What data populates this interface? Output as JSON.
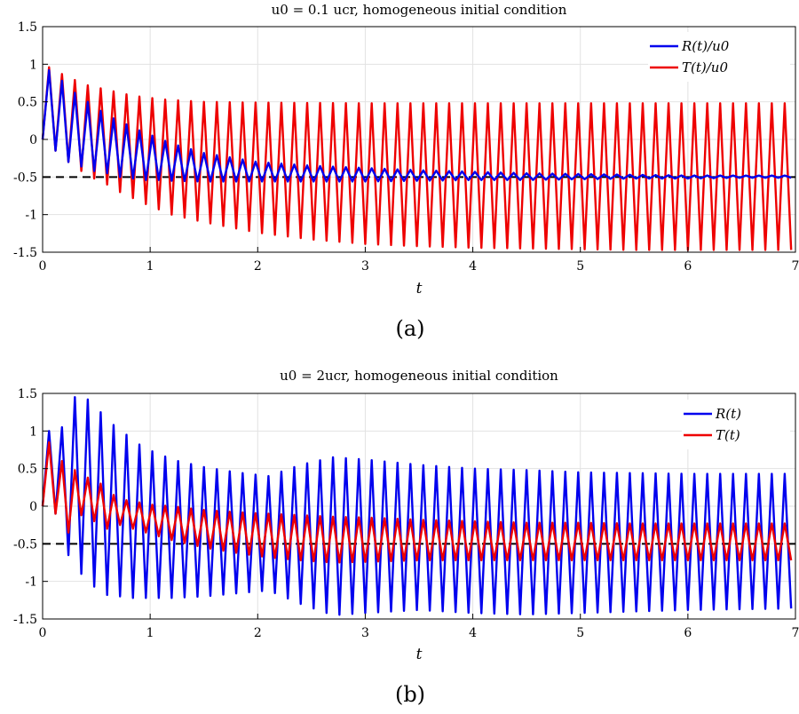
{
  "chart_data": [
    {
      "type": "line",
      "title": "u0 = 0.1 ucr, homogeneous initial condition",
      "xlabel": "t",
      "ylabel": "",
      "xlim": [
        0,
        7
      ],
      "ylim": [
        -1.5,
        1.5
      ],
      "xticks": [
        "0",
        "1",
        "2",
        "3",
        "4",
        "5",
        "6",
        "7"
      ],
      "yticks": [
        "1.5",
        "1",
        "0.5",
        "0",
        "-0.5",
        "-1",
        "-1.5"
      ],
      "grid": true,
      "legend_position": "top-right",
      "caption": "(a)",
      "reference_line": {
        "y": -0.5,
        "style": "dashed",
        "color": "#000000"
      },
      "oscillation_period": 0.12,
      "series": [
        {
          "name": "R(t)/u0",
          "color": "#0000ee",
          "peak_t": [
            0.06,
            0.18,
            0.3,
            0.42,
            0.54,
            0.66,
            0.78,
            0.9,
            1.02,
            1.14,
            1.26,
            1.5,
            2.0,
            2.5,
            3.0,
            3.5,
            4.0,
            4.5,
            5.0,
            5.5,
            6.0,
            6.5,
            7.0
          ],
          "peak_values": [
            0.92,
            0.78,
            0.62,
            0.5,
            0.38,
            0.28,
            0.2,
            0.12,
            0.05,
            -0.02,
            -0.08,
            -0.18,
            -0.3,
            -0.35,
            -0.38,
            -0.41,
            -0.43,
            -0.45,
            -0.46,
            -0.47,
            -0.48,
            -0.48,
            -0.48
          ],
          "trough_t": [
            0.12,
            0.24,
            0.36,
            0.48,
            0.6,
            0.72,
            0.84,
            0.96,
            1.08,
            1.2,
            1.5,
            2.0,
            2.5,
            3.0,
            3.5,
            4.0,
            4.5,
            5.0,
            5.5,
            6.0,
            6.5,
            7.0
          ],
          "trough_values": [
            -0.15,
            -0.3,
            -0.36,
            -0.42,
            -0.45,
            -0.5,
            -0.52,
            -0.54,
            -0.54,
            -0.55,
            -0.56,
            -0.56,
            -0.56,
            -0.56,
            -0.55,
            -0.54,
            -0.54,
            -0.53,
            -0.52,
            -0.52,
            -0.51,
            -0.51
          ]
        },
        {
          "name": "T(t)/u0",
          "color": "#ee0000",
          "peak_t": [
            0.06,
            0.18,
            0.3,
            0.42,
            0.54,
            0.66,
            0.78,
            0.9,
            1.02,
            1.14,
            1.26,
            1.5,
            2.0,
            3.0,
            4.0,
            5.0,
            6.0,
            7.0
          ],
          "peak_values": [
            0.96,
            0.87,
            0.79,
            0.72,
            0.68,
            0.64,
            0.6,
            0.57,
            0.55,
            0.53,
            0.52,
            0.5,
            0.49,
            0.48,
            0.48,
            0.48,
            0.48,
            0.48
          ],
          "trough_t": [
            0.12,
            0.24,
            0.36,
            0.48,
            0.6,
            0.72,
            0.84,
            0.96,
            1.08,
            1.2,
            1.5,
            2.0,
            2.5,
            3.0,
            3.5,
            4.0,
            4.5,
            5.0,
            5.5,
            6.0,
            6.5,
            7.0
          ],
          "trough_values": [
            -0.15,
            -0.3,
            -0.42,
            -0.52,
            -0.6,
            -0.7,
            -0.78,
            -0.86,
            -0.93,
            -1.0,
            -1.1,
            -1.24,
            -1.33,
            -1.39,
            -1.42,
            -1.44,
            -1.45,
            -1.46,
            -1.47,
            -1.47,
            -1.47,
            -1.47
          ]
        }
      ]
    },
    {
      "type": "line",
      "title": "u0 = 2ucr, homogeneous initial condition",
      "xlabel": "t",
      "ylabel": "",
      "xlim": [
        0,
        7
      ],
      "ylim": [
        -1.5,
        1.5
      ],
      "xticks": [
        "0",
        "1",
        "2",
        "3",
        "4",
        "5",
        "6",
        "7"
      ],
      "yticks": [
        "1.5",
        "1",
        "0.5",
        "0",
        "-0.5",
        "-1",
        "-1.5"
      ],
      "grid": true,
      "legend_position": "top-right",
      "caption": "(b)",
      "reference_line": {
        "y": -0.5,
        "style": "dashed",
        "color": "#000000"
      },
      "oscillation_period": 0.12,
      "series": [
        {
          "name": "R(t)",
          "color": "#0000ee",
          "peak_t": [
            0.06,
            0.18,
            0.3,
            0.42,
            0.54,
            0.66,
            0.78,
            0.9,
            1.02,
            1.14,
            1.26,
            1.5,
            1.8,
            2.1,
            2.4,
            2.7,
            3.0,
            3.5,
            4.0,
            4.5,
            5.0,
            5.5,
            6.0,
            6.5,
            7.0
          ],
          "peak_values": [
            1.0,
            1.05,
            1.45,
            1.42,
            1.25,
            1.08,
            0.95,
            0.82,
            0.73,
            0.66,
            0.6,
            0.52,
            0.45,
            0.4,
            0.55,
            0.65,
            0.62,
            0.55,
            0.5,
            0.48,
            0.45,
            0.44,
            0.43,
            0.43,
            0.43
          ],
          "trough_t": [
            0.12,
            0.24,
            0.36,
            0.48,
            0.6,
            0.72,
            0.84,
            0.96,
            1.08,
            1.2,
            1.5,
            1.8,
            2.1,
            2.4,
            2.7,
            3.0,
            3.5,
            4.0,
            4.5,
            5.0,
            5.5,
            6.0,
            6.5,
            7.0
          ],
          "trough_values": [
            -0.1,
            -0.65,
            -0.9,
            -1.07,
            -1.18,
            -1.2,
            -1.22,
            -1.22,
            -1.22,
            -1.22,
            -1.2,
            -1.16,
            -1.12,
            -1.3,
            -1.45,
            -1.42,
            -1.38,
            -1.42,
            -1.44,
            -1.42,
            -1.4,
            -1.38,
            -1.37,
            -1.36
          ]
        },
        {
          "name": "T(t)",
          "color": "#ee0000",
          "peak_t": [
            0.06,
            0.18,
            0.3,
            0.42,
            0.54,
            0.66,
            0.78,
            0.9,
            1.02,
            1.2,
            1.5,
            1.8,
            2.1,
            2.4,
            2.7,
            3.0,
            3.5,
            4.0,
            4.5,
            5.0,
            5.5,
            6.0,
            6.5,
            7.0
          ],
          "peak_values": [
            0.85,
            0.6,
            0.48,
            0.38,
            0.3,
            0.15,
            0.08,
            0.05,
            0.02,
            0.0,
            -0.05,
            -0.08,
            -0.1,
            -0.12,
            -0.14,
            -0.15,
            -0.18,
            -0.2,
            -0.22,
            -0.22,
            -0.23,
            -0.23,
            -0.23,
            -0.23
          ],
          "trough_t": [
            0.12,
            0.24,
            0.36,
            0.48,
            0.6,
            0.72,
            0.84,
            0.96,
            1.08,
            1.2,
            1.5,
            1.8,
            2.1,
            2.4,
            2.7,
            3.0,
            3.5,
            4.0,
            4.5,
            5.0,
            5.5,
            6.0,
            6.5,
            7.0
          ],
          "trough_values": [
            -0.1,
            -0.35,
            -0.12,
            -0.2,
            -0.3,
            -0.25,
            -0.3,
            -0.35,
            -0.4,
            -0.45,
            -0.55,
            -0.62,
            -0.68,
            -0.72,
            -0.75,
            -0.74,
            -0.72,
            -0.72,
            -0.72,
            -0.72,
            -0.72,
            -0.72,
            -0.72,
            -0.72
          ]
        }
      ]
    }
  ]
}
